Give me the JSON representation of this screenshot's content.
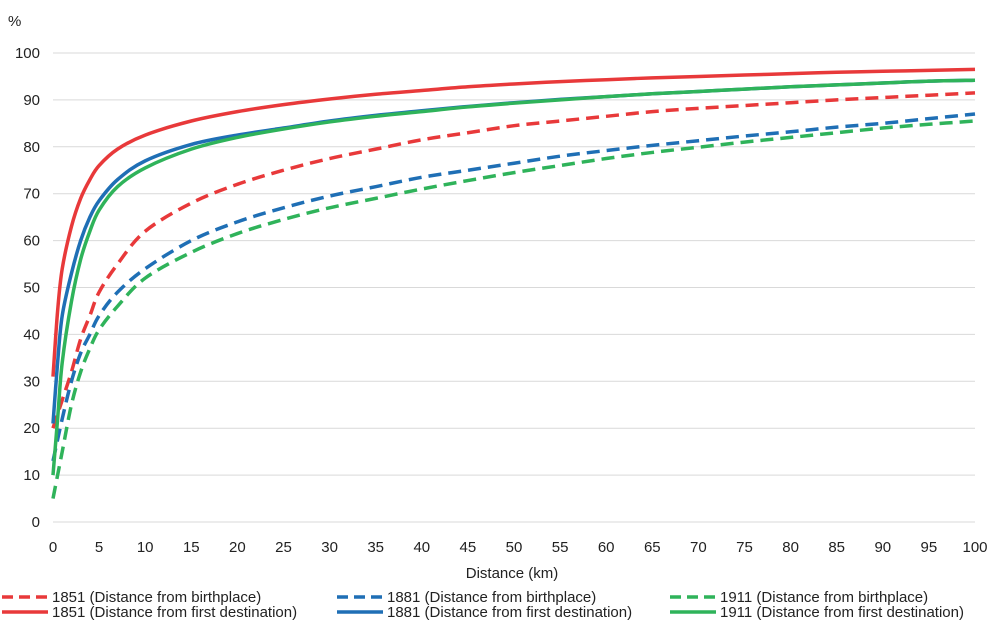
{
  "chart_data": {
    "type": "line",
    "y_unit_label": "%",
    "xlabel": "Distance (km)",
    "xlim": [
      0,
      100
    ],
    "ylim": [
      0,
      100
    ],
    "x_ticks": [
      0,
      5,
      10,
      15,
      20,
      25,
      30,
      35,
      40,
      45,
      50,
      55,
      60,
      65,
      70,
      75,
      80,
      85,
      90,
      95,
      100
    ],
    "y_ticks": [
      0,
      10,
      20,
      30,
      40,
      50,
      60,
      70,
      80,
      90,
      100
    ],
    "grid": "horizontal",
    "legend_position": "bottom",
    "series": [
      {
        "name": "1851 (Distance from birthplace)",
        "color": "#e8393a",
        "dash": true,
        "points": [
          [
            0,
            20
          ],
          [
            1,
            26
          ],
          [
            2,
            32
          ],
          [
            3,
            39
          ],
          [
            4,
            44
          ],
          [
            5,
            49
          ],
          [
            7,
            55
          ],
          [
            10,
            62
          ],
          [
            15,
            68
          ],
          [
            20,
            72
          ],
          [
            25,
            75
          ],
          [
            30,
            77.5
          ],
          [
            35,
            79.5
          ],
          [
            40,
            81.5
          ],
          [
            45,
            83
          ],
          [
            50,
            84.5
          ],
          [
            55,
            85.5
          ],
          [
            60,
            86.5
          ],
          [
            65,
            87.5
          ],
          [
            70,
            88.2
          ],
          [
            75,
            88.8
          ],
          [
            80,
            89.4
          ],
          [
            85,
            90
          ],
          [
            90,
            90.5
          ],
          [
            95,
            91
          ],
          [
            100,
            91.5
          ]
        ]
      },
      {
        "name": "1881 (Distance from birthplace)",
        "color": "#1f6fb5",
        "dash": true,
        "points": [
          [
            0,
            13
          ],
          [
            1,
            22
          ],
          [
            2,
            30
          ],
          [
            3,
            36
          ],
          [
            4,
            40
          ],
          [
            5,
            44
          ],
          [
            7,
            49
          ],
          [
            10,
            54
          ],
          [
            15,
            60
          ],
          [
            20,
            64
          ],
          [
            25,
            67
          ],
          [
            30,
            69.5
          ],
          [
            35,
            71.5
          ],
          [
            40,
            73.5
          ],
          [
            45,
            75
          ],
          [
            50,
            76.5
          ],
          [
            55,
            78
          ],
          [
            60,
            79.2
          ],
          [
            65,
            80.3
          ],
          [
            70,
            81.3
          ],
          [
            75,
            82.3
          ],
          [
            80,
            83.2
          ],
          [
            85,
            84.2
          ],
          [
            90,
            85
          ],
          [
            95,
            86
          ],
          [
            100,
            87
          ]
        ]
      },
      {
        "name": "1911 (Distance from birthplace)",
        "color": "#2fb35a",
        "dash": true,
        "points": [
          [
            0,
            5
          ],
          [
            1,
            15
          ],
          [
            2,
            25
          ],
          [
            3,
            32
          ],
          [
            4,
            37
          ],
          [
            5,
            41
          ],
          [
            7,
            46
          ],
          [
            10,
            52
          ],
          [
            15,
            57.5
          ],
          [
            20,
            61.5
          ],
          [
            25,
            64.5
          ],
          [
            30,
            67
          ],
          [
            35,
            69
          ],
          [
            40,
            71
          ],
          [
            45,
            72.8
          ],
          [
            50,
            74.5
          ],
          [
            55,
            76
          ],
          [
            60,
            77.5
          ],
          [
            65,
            78.8
          ],
          [
            70,
            79.9
          ],
          [
            75,
            81
          ],
          [
            80,
            82
          ],
          [
            85,
            83
          ],
          [
            90,
            84
          ],
          [
            95,
            84.8
          ],
          [
            100,
            85.5
          ]
        ]
      },
      {
        "name": "1851 (Distance from first destination)",
        "color": "#e8393a",
        "dash": false,
        "points": [
          [
            0,
            31
          ],
          [
            0.5,
            45
          ],
          [
            1,
            54
          ],
          [
            2,
            63
          ],
          [
            3,
            69
          ],
          [
            4,
            73
          ],
          [
            5,
            76
          ],
          [
            7,
            79.5
          ],
          [
            10,
            82.5
          ],
          [
            15,
            85.5
          ],
          [
            20,
            87.5
          ],
          [
            25,
            89
          ],
          [
            30,
            90.2
          ],
          [
            35,
            91.2
          ],
          [
            40,
            92
          ],
          [
            45,
            92.8
          ],
          [
            50,
            93.4
          ],
          [
            55,
            93.9
          ],
          [
            60,
            94.3
          ],
          [
            65,
            94.7
          ],
          [
            70,
            95
          ],
          [
            75,
            95.3
          ],
          [
            80,
            95.6
          ],
          [
            85,
            95.9
          ],
          [
            90,
            96.1
          ],
          [
            95,
            96.3
          ],
          [
            100,
            96.5
          ]
        ]
      },
      {
        "name": "1881 (Distance from first destination)",
        "color": "#1f6fb5",
        "dash": false,
        "points": [
          [
            0,
            21
          ],
          [
            0.5,
            34
          ],
          [
            1,
            44
          ],
          [
            2,
            53
          ],
          [
            3,
            60
          ],
          [
            4,
            65
          ],
          [
            5,
            68.5
          ],
          [
            7,
            73
          ],
          [
            10,
            77
          ],
          [
            15,
            80.5
          ],
          [
            20,
            82.5
          ],
          [
            25,
            84
          ],
          [
            30,
            85.5
          ],
          [
            35,
            86.7
          ],
          [
            40,
            87.7
          ],
          [
            45,
            88.6
          ],
          [
            50,
            89.4
          ],
          [
            55,
            90.1
          ],
          [
            60,
            90.7
          ],
          [
            65,
            91.3
          ],
          [
            70,
            91.8
          ],
          [
            75,
            92.3
          ],
          [
            80,
            92.8
          ],
          [
            85,
            93.2
          ],
          [
            90,
            93.6
          ],
          [
            95,
            94
          ],
          [
            100,
            94.2
          ]
        ]
      },
      {
        "name": "1911 (Distance from first destination)",
        "color": "#2fb35a",
        "dash": false,
        "points": [
          [
            0,
            10
          ],
          [
            0.5,
            22
          ],
          [
            1,
            34
          ],
          [
            2,
            47
          ],
          [
            3,
            56
          ],
          [
            4,
            62
          ],
          [
            5,
            66.5
          ],
          [
            7,
            71.5
          ],
          [
            10,
            75.5
          ],
          [
            15,
            79.5
          ],
          [
            20,
            82
          ],
          [
            25,
            83.8
          ],
          [
            30,
            85.3
          ],
          [
            35,
            86.5
          ],
          [
            40,
            87.5
          ],
          [
            45,
            88.5
          ],
          [
            50,
            89.3
          ],
          [
            55,
            90
          ],
          [
            60,
            90.7
          ],
          [
            65,
            91.3
          ],
          [
            70,
            91.8
          ],
          [
            75,
            92.3
          ],
          [
            80,
            92.8
          ],
          [
            85,
            93.2
          ],
          [
            90,
            93.6
          ],
          [
            95,
            94
          ],
          [
            100,
            94.2
          ]
        ]
      }
    ]
  }
}
